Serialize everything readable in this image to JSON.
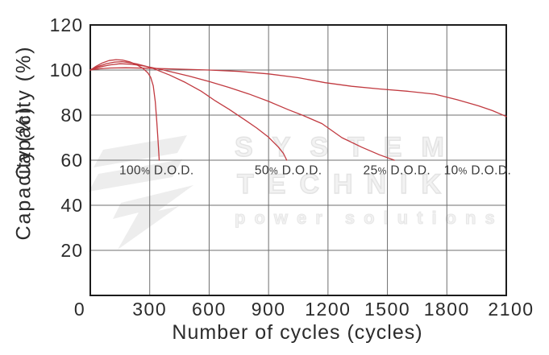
{
  "watermark": {
    "line1": "SYSTEM",
    "line2": "TECHNIK",
    "line3": "power solutions"
  },
  "colors": {
    "curve": "#c13a40",
    "grid": "#6f6f6f",
    "border": "#1c1c1c",
    "text": "#2b2b2b",
    "annotation": "#3a3a3a",
    "watermark_fill": "#ededed"
  },
  "chart_data": {
    "type": "line",
    "title": "",
    "xlabel": "Number of cycles (cycles)",
    "ylabel": "Capacity (%)",
    "xlim": [
      0,
      2100
    ],
    "ylim": [
      0,
      120
    ],
    "xticks": [
      0,
      300,
      600,
      900,
      1200,
      1500,
      1800,
      2100
    ],
    "ytick_labels": [
      120,
      100,
      80,
      60,
      40,
      20
    ],
    "grid": true,
    "legend_position": "inline-annotations",
    "series": [
      {
        "name": "100% D.O.D.",
        "points": [
          [
            0,
            100
          ],
          [
            30,
            101.7
          ],
          [
            60,
            103.1
          ],
          [
            95,
            104.2
          ],
          [
            130,
            104.6
          ],
          [
            165,
            104.4
          ],
          [
            200,
            103.6
          ],
          [
            235,
            102.3
          ],
          [
            265,
            100.8
          ],
          [
            290,
            98.8
          ],
          [
            305,
            96.8
          ],
          [
            318,
            93
          ],
          [
            328,
            86
          ],
          [
            335,
            78
          ],
          [
            341,
            70
          ],
          [
            346,
            63
          ],
          [
            348,
            60
          ]
        ]
      },
      {
        "name": "50% D.O.D.",
        "points": [
          [
            0,
            100
          ],
          [
            40,
            101.6
          ],
          [
            80,
            102.8
          ],
          [
            120,
            103.5
          ],
          [
            160,
            103.7
          ],
          [
            200,
            103.3
          ],
          [
            240,
            102.6
          ],
          [
            280,
            101.7
          ],
          [
            320,
            100.6
          ],
          [
            400,
            97.8
          ],
          [
            480,
            94.5
          ],
          [
            560,
            90.6
          ],
          [
            630,
            86.4
          ],
          [
            700,
            82.6
          ],
          [
            785,
            77.6
          ],
          [
            840,
            74.3
          ],
          [
            900,
            70.2
          ],
          [
            950,
            65.8
          ],
          [
            975,
            63
          ],
          [
            992,
            60
          ]
        ]
      },
      {
        "name": "25% D.O.D.",
        "points": [
          [
            0,
            100
          ],
          [
            50,
            101.4
          ],
          [
            100,
            102.3
          ],
          [
            150,
            102.8
          ],
          [
            200,
            102.6
          ],
          [
            250,
            102.1
          ],
          [
            300,
            101.3
          ],
          [
            350,
            100.4
          ],
          [
            400,
            99.4
          ],
          [
            500,
            97.3
          ],
          [
            600,
            94.9
          ],
          [
            700,
            92.3
          ],
          [
            800,
            89.4
          ],
          [
            900,
            86.1
          ],
          [
            1000,
            82.4
          ],
          [
            1070,
            80
          ],
          [
            1170,
            76.2
          ],
          [
            1270,
            70
          ],
          [
            1370,
            65.8
          ],
          [
            1460,
            62.4
          ],
          [
            1535,
            60
          ]
        ]
      },
      {
        "name": "10% D.O.D.",
        "points": [
          [
            0,
            100
          ],
          [
            50,
            100.6
          ],
          [
            100,
            100.9
          ],
          [
            180,
            101
          ],
          [
            300,
            100.8
          ],
          [
            450,
            100.4
          ],
          [
            600,
            100
          ],
          [
            750,
            99.4
          ],
          [
            900,
            98.3
          ],
          [
            1050,
            96.6
          ],
          [
            1185,
            94.4
          ],
          [
            1320,
            92.8
          ],
          [
            1460,
            91.6
          ],
          [
            1600,
            90.6
          ],
          [
            1740,
            89.3
          ],
          [
            1850,
            86.9
          ],
          [
            1960,
            84.1
          ],
          [
            2030,
            82
          ],
          [
            2100,
            79.4
          ]
        ]
      }
    ],
    "annotations": [
      {
        "label": "100% D.O.D.",
        "x": 335,
        "y": 55.5
      },
      {
        "label": "50% D.O.D.",
        "x": 1000,
        "y": 55.5
      },
      {
        "label": "25% D.O.D.",
        "x": 1548,
        "y": 55.5
      },
      {
        "label": "10% D.O.D.",
        "x": 1955,
        "y": 55.5
      }
    ]
  }
}
